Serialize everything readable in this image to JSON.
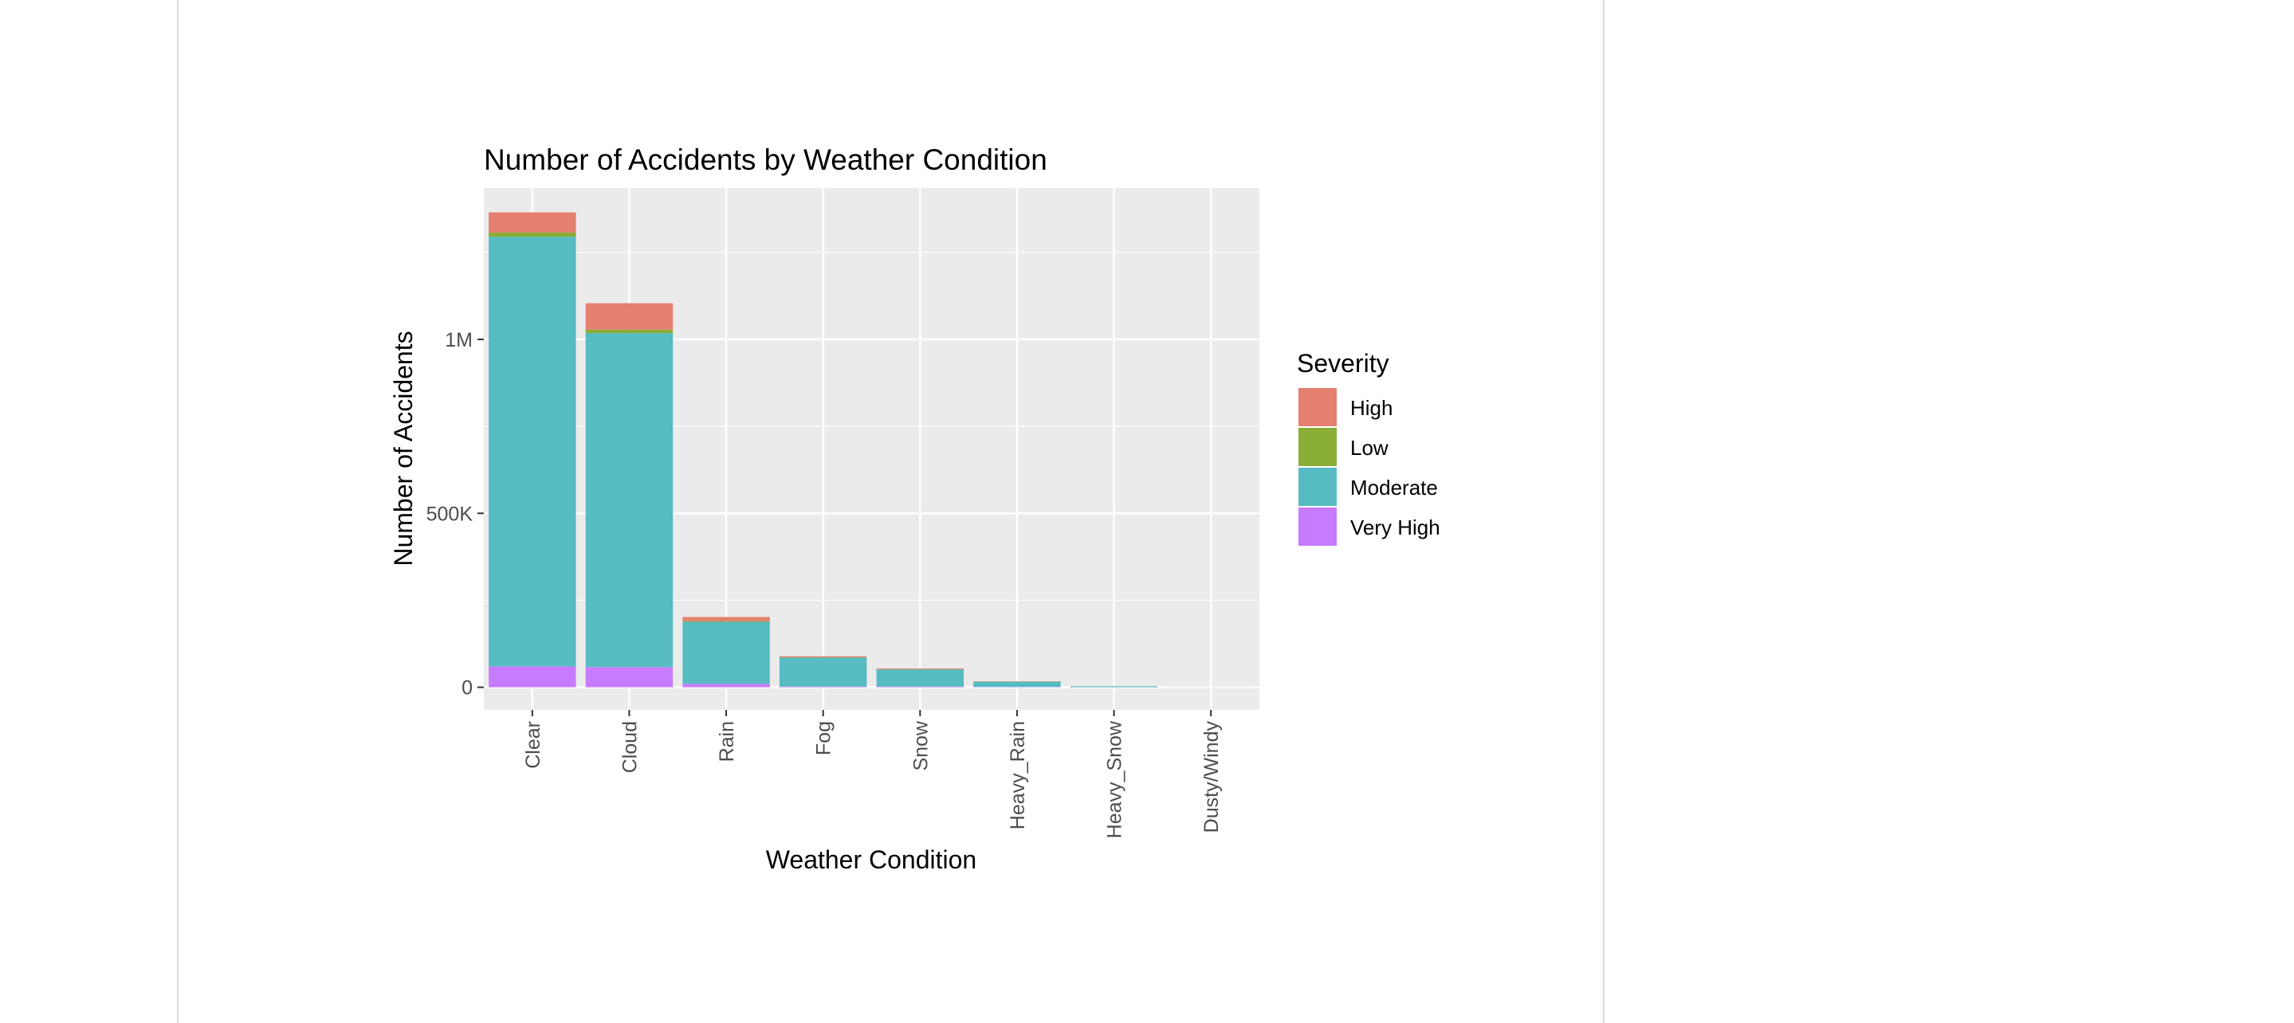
{
  "chart_data": {
    "type": "bar",
    "stacked": true,
    "title": "Number of Accidents by Weather Condition",
    "xlabel": "Weather Condition",
    "ylabel": "Number of Accidents",
    "categories": [
      "Clear",
      "Cloud",
      "Rain",
      "Fog",
      "Snow",
      "Heavy_Rain",
      "Heavy_Snow",
      "Dusty/Windy"
    ],
    "series": [
      {
        "name": "Very High",
        "color": "#C77CFF",
        "values": [
          60000,
          58000,
          10000,
          2000,
          2000,
          1000,
          200,
          50
        ]
      },
      {
        "name": "Moderate",
        "color": "#56BCC2",
        "values": [
          1235000,
          960000,
          178000,
          83000,
          49000,
          15000,
          2500,
          200
        ]
      },
      {
        "name": "Low",
        "color": "#8AAD35",
        "values": [
          12000,
          10000,
          2000,
          1000,
          500,
          200,
          50,
          10
        ]
      },
      {
        "name": "High",
        "color": "#E58070",
        "values": [
          58000,
          76000,
          12000,
          3000,
          2500,
          1000,
          200,
          40
        ]
      }
    ],
    "ylim": [
      -65000,
      1435000
    ],
    "yticks": [
      0,
      500000,
      1000000
    ],
    "yticklabels": [
      "0",
      "500K",
      "1M"
    ],
    "grid": true,
    "legend": {
      "title": "Severity",
      "position": "right",
      "entries": [
        "High",
        "Low",
        "Moderate",
        "Very High"
      ]
    }
  }
}
